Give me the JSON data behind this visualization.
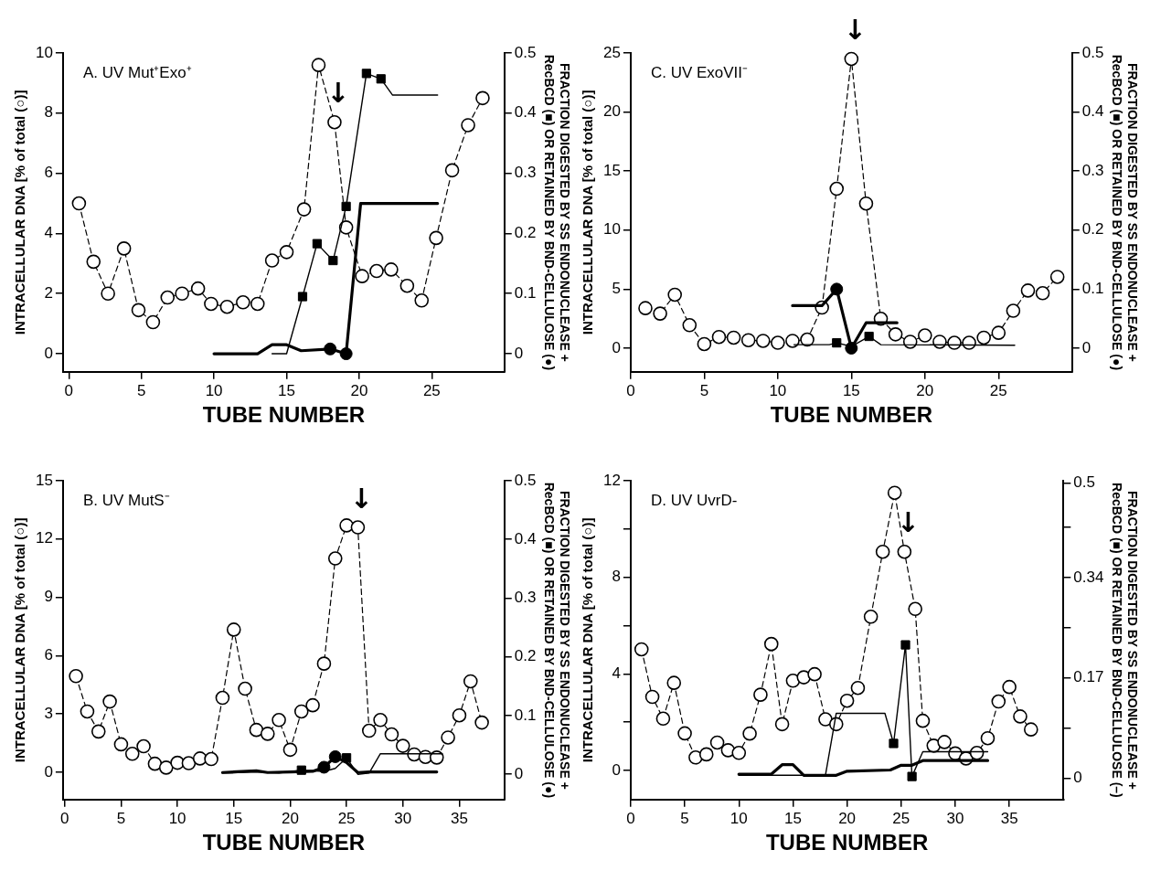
{
  "chart_data": [
    {
      "type": "line",
      "title": "A. UV Mut⁺Exo⁺",
      "xlabel": "TUBE NUMBER",
      "ylabel": "INTRACELLULAR DNA [% of total (○)]",
      "y2label": "FRACTION DIGESTED BY SS ENDONUCLEASE + RecBCD (■) OR RETAINED BY BND-CELLULOSE (●)",
      "xlim": [
        -0.4,
        30
      ],
      "xticks": [
        0,
        5,
        10,
        15,
        20,
        25
      ],
      "ylim": [
        -0.6,
        10
      ],
      "yticks": [
        0,
        2,
        4,
        6,
        8,
        10
      ],
      "y2lim": [
        -0.03,
        0.5
      ],
      "y2ticks": [
        0,
        0.1,
        0.2,
        0.3,
        0.4,
        0.5
      ],
      "grid": false,
      "legend": false,
      "annotations": [
        {
          "text": "↓",
          "x": 18.3,
          "y": 7.7
        }
      ],
      "series": [
        {
          "type": "line",
          "color": "#000000",
          "marker": "circle",
          "line_style": "dashed",
          "x": [
            0.7,
            1.7,
            2.7,
            3.8,
            4.8,
            5.8,
            6.8,
            7.8,
            8.9,
            9.8,
            10.9,
            12,
            13,
            14,
            15,
            16.2,
            17.2,
            18.3,
            19.1,
            20.2,
            21.2,
            22.2,
            23.3,
            24.3,
            25.3,
            26.4,
            27.5,
            28.5
          ],
          "values": [
            5.0,
            3.06,
            2.0,
            3.5,
            1.45,
            1.05,
            1.87,
            2.0,
            2.17,
            1.66,
            1.56,
            1.71,
            1.66,
            3.1,
            3.38,
            4.8,
            9.6,
            7.7,
            4.2,
            2.58,
            2.75,
            2.8,
            2.26,
            1.77,
            3.85,
            6.1,
            7.6,
            8.5
          ]
        },
        {
          "type": "line",
          "color": "#000000",
          "axis": "y2",
          "marker": "none",
          "line_style": "solid",
          "x": [
            14,
            15,
            16.1,
            17.1,
            18.2,
            19.1,
            20.5,
            21.5,
            22.3,
            25.4
          ],
          "values": [
            0,
            0,
            0.095,
            0.183,
            0.155,
            0.245,
            0.466,
            0.457,
            0.43,
            0.43
          ]
        },
        {
          "type": "scatter",
          "color": "#000000",
          "axis": "y2",
          "marker": "square",
          "x": [
            16.1,
            17.1,
            18.2,
            19.1,
            20.5,
            21.5
          ],
          "values": [
            0.095,
            0.183,
            0.155,
            0.245,
            0.466,
            0.457
          ]
        },
        {
          "type": "line",
          "color": "#000000",
          "axis": "y2",
          "marker": "none",
          "line_style": "solid",
          "x": [
            10,
            13,
            14,
            15,
            16,
            18,
            19.1,
            20.1,
            25.4
          ],
          "values": [
            0,
            0,
            0.015,
            0.015,
            0.005,
            0.008,
            0,
            0.25,
            0.25
          ]
        },
        {
          "type": "scatter",
          "color": "#000000",
          "axis": "y2",
          "marker": "circle",
          "x": [
            18,
            19.1
          ],
          "values": [
            0.008,
            0
          ]
        }
      ]
    },
    {
      "type": "line",
      "title": "C. UV ExoVII⁻",
      "xlabel": "TUBE NUMBER",
      "ylabel": "INTRACELLULAR DNA [% of total (○)]",
      "y2label": "FRACTION DIGESTED BY SS ENDONUCLEASE + RecBCD (■) OR RETAINED BY BND-CELLULOSE (●)",
      "xlim": [
        0,
        30
      ],
      "xticks": [
        0,
        5,
        10,
        15,
        20,
        25
      ],
      "ylim": [
        -2,
        25
      ],
      "yticks": [
        0,
        5,
        10,
        15,
        20,
        25
      ],
      "y2lim": [
        -0.04,
        0.5
      ],
      "y2ticks": [
        0,
        0.1,
        0.2,
        0.3,
        0.4,
        0.5
      ],
      "grid": false,
      "legend": false,
      "annotations": [
        {
          "text": "↓",
          "x": 15,
          "y": 24.5
        }
      ],
      "series": [
        {
          "type": "line",
          "color": "#000000",
          "marker": "circle",
          "line_style": "dashed",
          "x": [
            1,
            2,
            3,
            4,
            5,
            6,
            7,
            8,
            9,
            10,
            11,
            12,
            13,
            14,
            15,
            16,
            17,
            18,
            19,
            20,
            21,
            22,
            23,
            24,
            25,
            26,
            27,
            28,
            29
          ],
          "values": [
            3.39,
            2.93,
            4.53,
            1.95,
            0.35,
            0.95,
            0.89,
            0.68,
            0.62,
            0.46,
            0.62,
            0.73,
            3.44,
            13.5,
            24.5,
            12.25,
            2.49,
            1.17,
            0.54,
            1.08,
            0.54,
            0.46,
            0.46,
            0.89,
            1.3,
            3.17,
            4.88,
            4.66,
            6.04
          ]
        },
        {
          "type": "line",
          "color": "#000000",
          "axis": "y2",
          "marker": "none",
          "line_style": "solid",
          "x": [
            11.1,
            13.5,
            14,
            15,
            16.2,
            17,
            26.1
          ],
          "values": [
            0.006,
            0.006,
            0.009,
            0.003,
            0.02,
            0.006,
            0.005
          ]
        },
        {
          "type": "scatter",
          "color": "#000000",
          "axis": "y2",
          "marker": "square",
          "x": [
            14,
            16.2
          ],
          "values": [
            0.009,
            0.02
          ]
        },
        {
          "type": "line",
          "color": "#000000",
          "axis": "y2",
          "marker": "none",
          "line_style": "solid",
          "x": [
            11,
            13,
            14,
            15,
            16,
            18.1
          ],
          "values": [
            0.072,
            0.072,
            0.1,
            0,
            0.043,
            0.043
          ]
        },
        {
          "type": "scatter",
          "color": "#000000",
          "axis": "y2",
          "marker": "circle",
          "x": [
            14,
            15
          ],
          "values": [
            0.1,
            0
          ]
        }
      ]
    },
    {
      "type": "line",
      "title": "B. UV MutS⁻",
      "xlabel": "TUBE NUMBER",
      "ylabel": "INTRACELLULAR DNA [% of total (○)]",
      "y2label": "FRACTION DIGESTED BY SS ENDONUCLEASE + RecBCD (■) OR RETAINED BY BND-CELLULOSE (●)",
      "xlim": [
        -0.15,
        39
      ],
      "xticks": [
        0,
        5,
        10,
        15,
        20,
        25,
        30,
        35
      ],
      "ylim": [
        -1.4,
        15
      ],
      "yticks": [
        0,
        3,
        6,
        9,
        12,
        15
      ],
      "y2lim": [
        -0.043,
        0.5
      ],
      "y2ticks": [
        0,
        0.1,
        0.2,
        0.3,
        0.4,
        0.5
      ],
      "grid": false,
      "legend": false,
      "annotations": [
        {
          "text": "↓",
          "x": 26,
          "y": 12.6
        }
      ],
      "series": [
        {
          "type": "line",
          "color": "#000000",
          "marker": "circle",
          "line_style": "dashed",
          "x": [
            1,
            2,
            3,
            4,
            5,
            6,
            7,
            8,
            9,
            10,
            11,
            12,
            13,
            14,
            15,
            16,
            17,
            18,
            19,
            20,
            21,
            22,
            23,
            24,
            25,
            26,
            27,
            28,
            29,
            30,
            31,
            32,
            33,
            34,
            35,
            36,
            37
          ],
          "values": [
            4.95,
            3.13,
            2.1,
            3.64,
            1.44,
            0.95,
            1.34,
            0.44,
            0.24,
            0.49,
            0.47,
            0.71,
            0.68,
            3.83,
            7.34,
            4.3,
            2.18,
            1.98,
            2.69,
            1.16,
            3.13,
            3.45,
            5.59,
            11.0,
            12.7,
            12.6,
            2.14,
            2.69,
            1.95,
            1.36,
            0.92,
            0.79,
            0.76,
            1.79,
            2.93,
            4.68,
            2.56
          ]
        },
        {
          "type": "line",
          "color": "#000000",
          "axis": "y2",
          "marker": "none",
          "line_style": "solid",
          "x": [
            14,
            17,
            19,
            21,
            23,
            24,
            25,
            26,
            27,
            28,
            33.5
          ],
          "values": [
            0.002,
            0.004,
            0.002,
            0.007,
            0.005,
            0.01,
            0.028,
            0,
            0.002,
            0.035,
            0.035
          ]
        },
        {
          "type": "scatter",
          "color": "#000000",
          "axis": "y2",
          "marker": "square",
          "x": [
            21,
            25
          ],
          "values": [
            0.007,
            0.028
          ]
        },
        {
          "type": "line",
          "color": "#000000",
          "axis": "y2",
          "marker": "none",
          "line_style": "solid",
          "x": [
            14,
            17,
            18,
            20,
            22,
            23,
            24,
            25,
            26,
            27,
            33
          ],
          "values": [
            0.003,
            0.006,
            0.003,
            0.004,
            0.005,
            0.012,
            0.03,
            0.02,
            0.003,
            0.004,
            0.004
          ]
        },
        {
          "type": "scatter",
          "color": "#000000",
          "axis": "y2",
          "marker": "circle",
          "x": [
            23,
            24
          ],
          "values": [
            0.012,
            0.03
          ]
        }
      ]
    },
    {
      "type": "line",
      "title": "D. UV UvrD-",
      "xlabel": "TUBE NUMBER",
      "ylabel": "INTRACELLULAR DNA [% of total (○)]",
      "y2label": "FRACTION DIGESTED BY SS ENDONUCLEASE + RecBCD (■) OR RETAINED BY BND-CELLULOSE (–)",
      "xlim": [
        0,
        40
      ],
      "xticks": [
        0,
        5,
        10,
        15,
        20,
        25,
        30,
        35
      ],
      "ylim": [
        -1.2,
        12
      ],
      "yticks": [
        0,
        {
          "value": 2,
          "label": null
        },
        4,
        {
          "value": 6,
          "label": null
        },
        8,
        {
          "value": 10,
          "label": null
        },
        12
      ],
      "y2lim": [
        -0.036,
        0.504
      ],
      "y2ticks": [
        0,
        {
          "value": 0.085,
          "label": null
        },
        0.17,
        {
          "value": 0.255,
          "label": null
        },
        0.34,
        {
          "value": 0.425,
          "label": null
        },
        0.5
      ],
      "grid": false,
      "legend": false,
      "annotations": [
        {
          "text": "↓",
          "x": 25.3,
          "y": 9.06
        }
      ],
      "series": [
        {
          "type": "line",
          "color": "#000000",
          "marker": "circle",
          "line_style": "dashed",
          "x": [
            1,
            2,
            3,
            4,
            5,
            6,
            7,
            8,
            9,
            10,
            11,
            12,
            13,
            14,
            15,
            16,
            17,
            18,
            19,
            20,
            21,
            22.2,
            23.3,
            24.4,
            25.3,
            26.3,
            27,
            28,
            29,
            30,
            31,
            32,
            33,
            34,
            35,
            36,
            37
          ],
          "values": [
            5.02,
            3.05,
            2.15,
            3.63,
            1.54,
            0.54,
            0.67,
            1.16,
            0.84,
            0.73,
            1.53,
            3.14,
            5.24,
            1.92,
            3.72,
            3.86,
            3.99,
            2.12,
            1.92,
            2.89,
            3.42,
            6.37,
            9.06,
            11.5,
            9.06,
            6.69,
            2.06,
            1.03,
            1.18,
            0.71,
            0.5,
            0.73,
            1.34,
            2.86,
            3.46,
            2.24,
            1.7
          ]
        },
        {
          "type": "line",
          "color": "#000000",
          "axis": "y2",
          "marker": "none",
          "line_style": "solid",
          "x": [
            10,
            18,
            19,
            23.5,
            24.3,
            25.4,
            26,
            27,
            33
          ],
          "values": [
            0.005,
            0.005,
            0.11,
            0.11,
            0.059,
            0.226,
            0.003,
            0.045,
            0.045
          ]
        },
        {
          "type": "scatter",
          "color": "#000000",
          "axis": "y2",
          "marker": "square",
          "x": [
            24.3,
            25.4,
            26
          ],
          "values": [
            0.059,
            0.226,
            0.003
          ]
        },
        {
          "type": "line",
          "color": "#000000",
          "axis": "y2",
          "marker": "none",
          "line_style": "solid",
          "x": [
            10,
            13,
            14,
            15,
            16,
            19,
            20,
            24,
            25,
            26,
            27,
            33
          ],
          "values": [
            0.007,
            0.007,
            0.023,
            0.023,
            0.005,
            0.005,
            0.012,
            0.014,
            0.022,
            0.022,
            0.03,
            0.03
          ]
        }
      ]
    }
  ]
}
